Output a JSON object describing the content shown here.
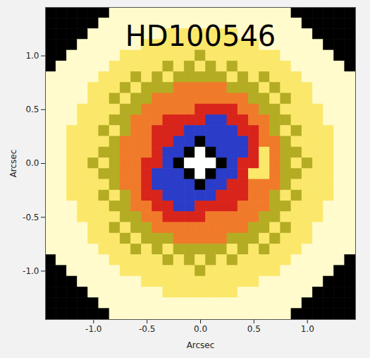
{
  "chart_data": {
    "type": "heatmap",
    "title": "HD100546",
    "x_label": "Arcsec",
    "y_label": "Arcsec",
    "x": [
      -1.4,
      -1.3,
      -1.2,
      -1.1,
      -1.0,
      -0.9,
      -0.8,
      -0.7,
      -0.6,
      -0.5,
      -0.4,
      -0.3,
      -0.2,
      -0.1,
      0.0,
      0.1,
      0.2,
      0.3,
      0.4,
      0.5,
      0.6,
      0.7,
      0.8,
      0.9,
      1.0,
      1.1,
      1.2,
      1.3,
      1.4
    ],
    "y": [
      1.4,
      1.3,
      1.2,
      1.1,
      1.0,
      0.9,
      0.8,
      0.7,
      0.6,
      0.5,
      0.4,
      0.3,
      0.2,
      0.1,
      0.0,
      -0.1,
      -0.2,
      -0.3,
      -0.4,
      -0.5,
      -0.6,
      -0.7,
      -0.8,
      -0.9,
      -1.0,
      -1.1,
      -1.2,
      -1.3,
      -1.4
    ],
    "z": [
      [
        0,
        0,
        0,
        0,
        0,
        0,
        7,
        7,
        7,
        7,
        7,
        7,
        7,
        7,
        7,
        7,
        7,
        7,
        7,
        7,
        7,
        7,
        7,
        0,
        0,
        0,
        0,
        0,
        0
      ],
      [
        0,
        0,
        0,
        0,
        0,
        7,
        7,
        7,
        7,
        7,
        7,
        7,
        7,
        7,
        7,
        7,
        7,
        7,
        7,
        7,
        7,
        7,
        7,
        7,
        0,
        0,
        0,
        0,
        0
      ],
      [
        0,
        0,
        0,
        0,
        7,
        7,
        7,
        7,
        7,
        7,
        7,
        6,
        6,
        6,
        6,
        6,
        6,
        6,
        7,
        7,
        7,
        7,
        7,
        7,
        7,
        0,
        0,
        0,
        0
      ],
      [
        0,
        0,
        0,
        7,
        7,
        7,
        7,
        7,
        7,
        6,
        6,
        6,
        6,
        6,
        6,
        6,
        6,
        6,
        6,
        6,
        7,
        7,
        7,
        7,
        7,
        7,
        0,
        0,
        0
      ],
      [
        0,
        0,
        7,
        7,
        7,
        7,
        7,
        6,
        6,
        6,
        6,
        6,
        6,
        6,
        5,
        6,
        6,
        6,
        6,
        6,
        6,
        6,
        7,
        7,
        7,
        7,
        7,
        0,
        0
      ],
      [
        0,
        7,
        7,
        7,
        7,
        7,
        6,
        6,
        6,
        6,
        6,
        5,
        6,
        5,
        6,
        5,
        6,
        5,
        6,
        6,
        6,
        6,
        6,
        7,
        7,
        7,
        7,
        7,
        0
      ],
      [
        7,
        7,
        7,
        7,
        7,
        6,
        6,
        6,
        5,
        6,
        5,
        6,
        5,
        5,
        5,
        5,
        5,
        6,
        5,
        6,
        5,
        6,
        6,
        6,
        7,
        7,
        7,
        7,
        7
      ],
      [
        7,
        7,
        7,
        7,
        6,
        6,
        6,
        5,
        6,
        5,
        5,
        5,
        4,
        4,
        4,
        4,
        4,
        5,
        5,
        5,
        6,
        5,
        6,
        6,
        6,
        7,
        7,
        7,
        7
      ],
      [
        7,
        7,
        7,
        7,
        6,
        6,
        5,
        6,
        5,
        5,
        4,
        4,
        4,
        4,
        4,
        4,
        4,
        4,
        4,
        5,
        5,
        6,
        5,
        6,
        6,
        7,
        7,
        7,
        7
      ],
      [
        7,
        7,
        7,
        6,
        6,
        6,
        6,
        5,
        5,
        4,
        4,
        4,
        4,
        4,
        3,
        3,
        3,
        3,
        4,
        4,
        5,
        5,
        6,
        6,
        6,
        6,
        7,
        7,
        7
      ],
      [
        7,
        7,
        7,
        6,
        6,
        6,
        5,
        5,
        4,
        4,
        4,
        3,
        3,
        3,
        3,
        2,
        2,
        3,
        3,
        4,
        4,
        5,
        5,
        6,
        6,
        6,
        7,
        7,
        7
      ],
      [
        7,
        7,
        6,
        6,
        6,
        5,
        6,
        5,
        4,
        4,
        3,
        3,
        3,
        2,
        2,
        2,
        2,
        2,
        3,
        3,
        4,
        5,
        6,
        5,
        6,
        6,
        6,
        7,
        7
      ],
      [
        7,
        7,
        6,
        6,
        6,
        6,
        5,
        4,
        4,
        4,
        3,
        3,
        2,
        2,
        0,
        2,
        2,
        2,
        2,
        3,
        4,
        4,
        5,
        6,
        6,
        6,
        6,
        7,
        7
      ],
      [
        7,
        7,
        6,
        6,
        6,
        5,
        5,
        4,
        4,
        4,
        3,
        2,
        2,
        0,
        1,
        0,
        2,
        2,
        2,
        3,
        6,
        4,
        5,
        5,
        6,
        6,
        6,
        7,
        7
      ],
      [
        7,
        7,
        6,
        6,
        5,
        6,
        5,
        4,
        4,
        3,
        3,
        2,
        0,
        1,
        1,
        1,
        0,
        2,
        3,
        3,
        6,
        4,
        5,
        6,
        5,
        6,
        6,
        7,
        7
      ],
      [
        7,
        7,
        6,
        6,
        6,
        5,
        5,
        4,
        4,
        3,
        2,
        2,
        2,
        0,
        1,
        0,
        2,
        2,
        3,
        6,
        6,
        4,
        5,
        5,
        6,
        6,
        6,
        7,
        7
      ],
      [
        7,
        7,
        6,
        6,
        6,
        6,
        5,
        4,
        4,
        3,
        2,
        2,
        2,
        2,
        0,
        2,
        2,
        3,
        3,
        4,
        4,
        4,
        5,
        6,
        6,
        6,
        6,
        7,
        7
      ],
      [
        7,
        7,
        6,
        6,
        6,
        5,
        6,
        5,
        4,
        3,
        3,
        2,
        2,
        2,
        2,
        2,
        3,
        3,
        3,
        4,
        4,
        5,
        6,
        5,
        6,
        6,
        6,
        7,
        7
      ],
      [
        7,
        7,
        7,
        6,
        6,
        6,
        5,
        5,
        4,
        4,
        3,
        3,
        2,
        2,
        3,
        3,
        3,
        3,
        4,
        4,
        4,
        5,
        5,
        6,
        6,
        6,
        7,
        7,
        7
      ],
      [
        7,
        7,
        7,
        6,
        6,
        6,
        6,
        5,
        5,
        4,
        4,
        3,
        3,
        3,
        3,
        4,
        4,
        4,
        4,
        4,
        5,
        5,
        6,
        6,
        6,
        6,
        7,
        7,
        7
      ],
      [
        7,
        7,
        7,
        7,
        6,
        6,
        5,
        6,
        5,
        5,
        4,
        4,
        4,
        4,
        4,
        4,
        4,
        4,
        4,
        5,
        5,
        6,
        5,
        6,
        6,
        7,
        7,
        7,
        7
      ],
      [
        7,
        7,
        7,
        7,
        6,
        6,
        6,
        5,
        6,
        5,
        5,
        5,
        4,
        4,
        4,
        4,
        4,
        5,
        5,
        5,
        6,
        5,
        6,
        6,
        6,
        7,
        7,
        7,
        7
      ],
      [
        7,
        7,
        7,
        7,
        7,
        6,
        6,
        6,
        5,
        6,
        5,
        6,
        5,
        5,
        5,
        5,
        5,
        6,
        5,
        6,
        5,
        6,
        6,
        6,
        7,
        7,
        7,
        7,
        7
      ],
      [
        0,
        7,
        7,
        7,
        7,
        7,
        6,
        6,
        6,
        6,
        6,
        5,
        6,
        5,
        6,
        5,
        6,
        5,
        6,
        6,
        6,
        6,
        6,
        7,
        7,
        7,
        7,
        7,
        0
      ],
      [
        0,
        0,
        7,
        7,
        7,
        7,
        7,
        6,
        6,
        6,
        6,
        6,
        6,
        6,
        5,
        6,
        6,
        6,
        6,
        6,
        6,
        6,
        7,
        7,
        7,
        7,
        7,
        0,
        0
      ],
      [
        0,
        0,
        0,
        7,
        7,
        7,
        7,
        7,
        7,
        6,
        6,
        6,
        6,
        6,
        6,
        6,
        6,
        6,
        6,
        6,
        7,
        7,
        7,
        7,
        7,
        7,
        0,
        0,
        0
      ],
      [
        0,
        0,
        0,
        0,
        7,
        7,
        7,
        7,
        7,
        7,
        7,
        6,
        6,
        6,
        6,
        6,
        6,
        6,
        7,
        7,
        7,
        7,
        7,
        7,
        7,
        0,
        0,
        0,
        0
      ],
      [
        0,
        0,
        0,
        0,
        0,
        7,
        7,
        7,
        7,
        7,
        7,
        7,
        7,
        7,
        7,
        7,
        7,
        7,
        7,
        7,
        7,
        7,
        7,
        7,
        0,
        0,
        0,
        0,
        0
      ],
      [
        0,
        0,
        0,
        0,
        0,
        0,
        7,
        7,
        7,
        7,
        7,
        7,
        7,
        7,
        7,
        7,
        7,
        7,
        7,
        7,
        7,
        7,
        7,
        0,
        0,
        0,
        0,
        0,
        0
      ]
    ],
    "colors": [
      "#000000",
      "#ffffff",
      "#2a3cc8",
      "#d8241a",
      "#f07a2a",
      "#b4ac22",
      "#fbe86a",
      "#fffbcc"
    ],
    "xlim": [
      -1.45,
      1.45
    ],
    "ylim": [
      -1.45,
      1.45
    ],
    "xticks": [
      {
        "value": -1,
        "label": "-1.0"
      },
      {
        "value": -0.5,
        "label": "-0.5"
      },
      {
        "value": 0,
        "label": "0.0"
      },
      {
        "value": 0.5,
        "label": "0.5"
      },
      {
        "value": 1,
        "label": "1.0"
      }
    ],
    "yticks": [
      {
        "value": -1,
        "label": "-1.0"
      },
      {
        "value": -0.5,
        "label": "-0.5"
      },
      {
        "value": 0,
        "label": "0.0"
      },
      {
        "value": 0.5,
        "label": "0.5"
      },
      {
        "value": 1,
        "label": "1.0"
      }
    ],
    "grid": false
  }
}
